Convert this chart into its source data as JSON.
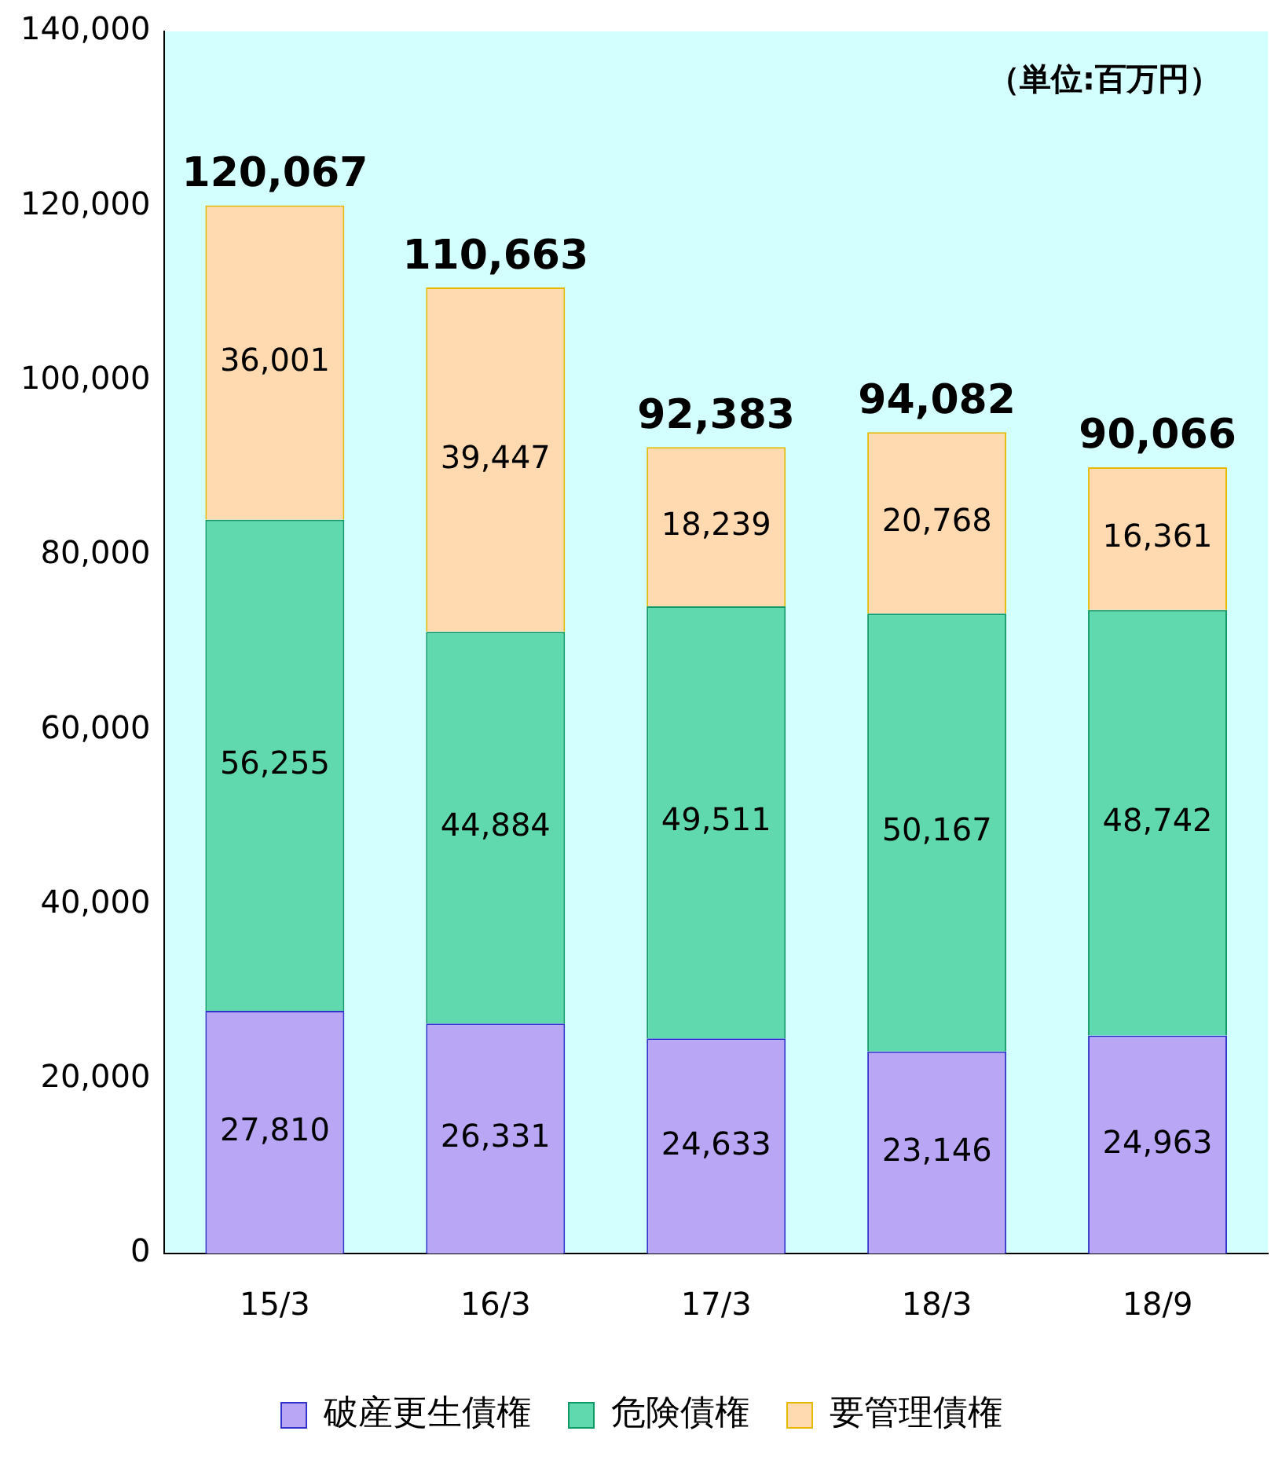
{
  "chart_data": {
    "type": "bar",
    "stacked": true,
    "categories": [
      "15/3",
      "16/3",
      "17/3",
      "18/3",
      "18/9"
    ],
    "series": [
      {
        "name": "破産更生債権",
        "color": "#b9a6f5",
        "values": [
          27810,
          26331,
          24633,
          23146,
          24963
        ],
        "value_labels": [
          "27,810",
          "26,331",
          "24,633",
          "23,146",
          "24,963"
        ]
      },
      {
        "name": "危険債権",
        "color": "#5fd9ad",
        "values": [
          56255,
          44884,
          49511,
          50167,
          48742
        ],
        "value_labels": [
          "56,255",
          "44,884",
          "49,511",
          "50,167",
          "48,742"
        ]
      },
      {
        "name": "要管理債権",
        "color": "#ffd9b0",
        "values": [
          36001,
          39447,
          18239,
          20768,
          16361
        ],
        "value_labels": [
          "36,001",
          "39,447",
          "18,239",
          "20,768",
          "16,361"
        ]
      }
    ],
    "totals": [
      "120,067",
      "110,663",
      "92,383",
      "94,082",
      "90,066"
    ],
    "ylim": [
      0,
      140000
    ],
    "yticks": [
      {
        "value": 0,
        "label": "0"
      },
      {
        "value": 20000,
        "label": "20,000"
      },
      {
        "value": 40000,
        "label": "40,000"
      },
      {
        "value": 60000,
        "label": "60,000"
      },
      {
        "value": 80000,
        "label": "80,000"
      },
      {
        "value": 100000,
        "label": "100,000"
      },
      {
        "value": 120000,
        "label": "120,000"
      },
      {
        "value": 140000,
        "label": "140,000"
      }
    ],
    "grid": false,
    "legend": "bottom",
    "annotations": [
      "（単位:百万円）"
    ]
  }
}
